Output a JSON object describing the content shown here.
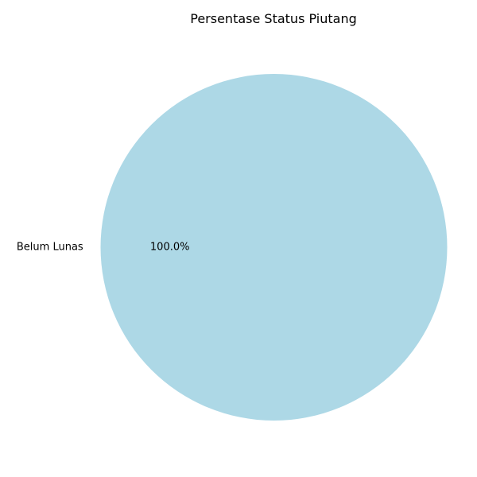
{
  "chart_data": {
    "type": "pie",
    "title": "Persentase Status Piutang",
    "slices": [
      {
        "label": "Belum Lunas",
        "value": 100.0,
        "percent_label": "100.0%",
        "color": "#add8e6"
      }
    ],
    "start_angle": 0,
    "direction": "counterclockwise",
    "legend": "none"
  }
}
